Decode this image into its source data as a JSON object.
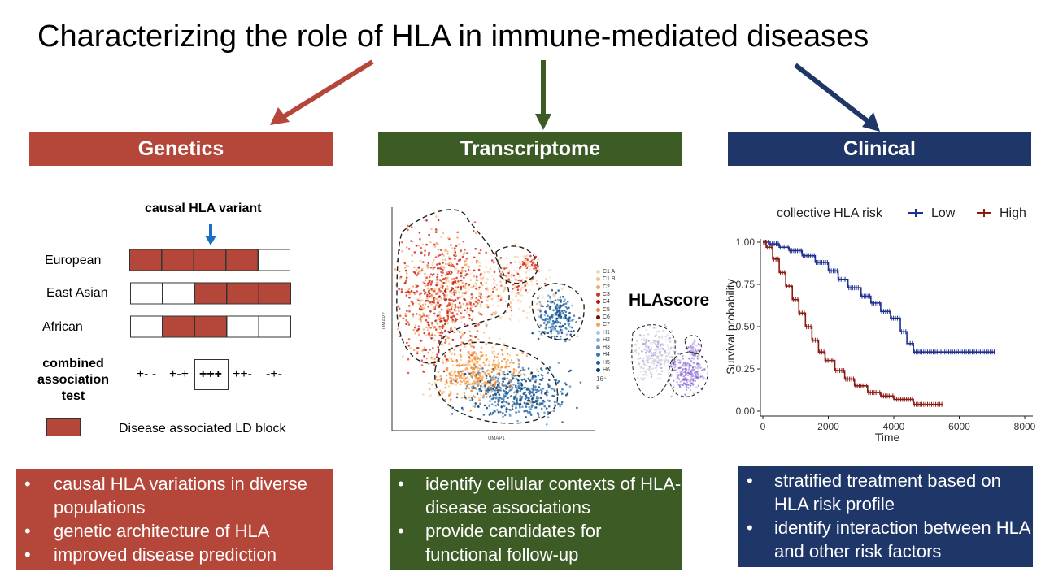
{
  "title": "Characterizing the role of HLA in immune-mediated diseases",
  "colors": {
    "genetics": "#b5473a",
    "transcriptome": "#3d5b24",
    "clinical": "#1e3668",
    "arrow_blue": "#1a6fc9",
    "km_low": "#1f2f8f",
    "km_high": "#8b1a12"
  },
  "genetics": {
    "header": "Genetics",
    "causal_label": "causal HLA variant",
    "populations": [
      {
        "name": "European",
        "blocks": [
          1,
          1,
          1,
          1,
          0
        ]
      },
      {
        "name": "East Asian",
        "blocks": [
          0,
          0,
          1,
          1,
          1
        ]
      },
      {
        "name": "African",
        "blocks": [
          0,
          1,
          1,
          0,
          0
        ]
      }
    ],
    "combined_label_1": "combined",
    "combined_label_2": "association",
    "combined_label_3": "test",
    "combined_values": [
      "+- -",
      "+-+",
      "+++",
      "++-",
      "-+-"
    ],
    "legend_label": "Disease associated LD block",
    "bullets": [
      "causal HLA variations in diverse populations",
      "genetic architecture of HLA",
      "improved disease prediction"
    ]
  },
  "transcriptome": {
    "header": "Transcriptome",
    "xlabel": "UMAP1",
    "ylabel": "UMAP2",
    "legend": [
      "C1 A",
      "C1 B",
      "C2",
      "C3",
      "C4",
      "C5",
      "C6",
      "C7",
      "H1",
      "H2",
      "H3",
      "H4",
      "H5",
      "H6"
    ],
    "legend_colors": [
      "#f6d7b0",
      "#f5c08a",
      "#f4a86a",
      "#d7301f",
      "#b0190f",
      "#f08a2c",
      "#7a0c06",
      "#f7a24a",
      "#a6c8e4",
      "#7fb0d8",
      "#5a96c8",
      "#3377b3",
      "#1f5f9e",
      "#0e3e75"
    ],
    "footnote_1": "16⁺",
    "footnote_2": "s",
    "hlascore_label": "HLAscore",
    "bullets": [
      "identify cellular contexts of HLA-disease associations",
      "provide candidates for functional follow-up"
    ]
  },
  "clinical": {
    "header": "Clinical",
    "chart_data": {
      "type": "line",
      "legend_title": "collective HLA risk",
      "legend_placement": "top",
      "xlabel": "Time",
      "ylabel": "Survival probability",
      "xlim": [
        0,
        8000
      ],
      "ylim": [
        0,
        1
      ],
      "x_ticks": [
        0,
        2000,
        4000,
        6000,
        8000
      ],
      "y_ticks": [
        0.0,
        0.25,
        0.5,
        0.75,
        1.0
      ],
      "x_tick_labels": [
        "0",
        "2000",
        "4000",
        "6000",
        "8000"
      ],
      "y_tick_labels": [
        "0.00",
        "0.25",
        "0.50",
        "0.75",
        "1.00"
      ],
      "series": [
        {
          "name": "Low",
          "color": "#1f2f8f",
          "x": [
            0,
            200,
            500,
            800,
            1200,
            1600,
            2000,
            2300,
            2600,
            3000,
            3300,
            3600,
            3900,
            4200,
            4400,
            4600,
            5000,
            6000,
            7100
          ],
          "y": [
            1.0,
            0.99,
            0.97,
            0.95,
            0.92,
            0.88,
            0.83,
            0.78,
            0.73,
            0.68,
            0.64,
            0.59,
            0.55,
            0.47,
            0.4,
            0.35,
            0.35,
            0.35,
            0.35
          ]
        },
        {
          "name": "High",
          "color": "#8b1a12",
          "x": [
            0,
            100,
            300,
            500,
            700,
            900,
            1100,
            1300,
            1500,
            1700,
            1900,
            2200,
            2500,
            2800,
            3200,
            3600,
            4000,
            4600,
            5000,
            5500
          ],
          "y": [
            1.0,
            0.97,
            0.9,
            0.82,
            0.74,
            0.66,
            0.58,
            0.5,
            0.42,
            0.35,
            0.3,
            0.24,
            0.19,
            0.15,
            0.11,
            0.09,
            0.07,
            0.04,
            0.04,
            0.04
          ]
        }
      ]
    },
    "bullets": [
      "stratified treatment based on HLA risk profile",
      "identify interaction between HLA and other risk factors"
    ]
  }
}
